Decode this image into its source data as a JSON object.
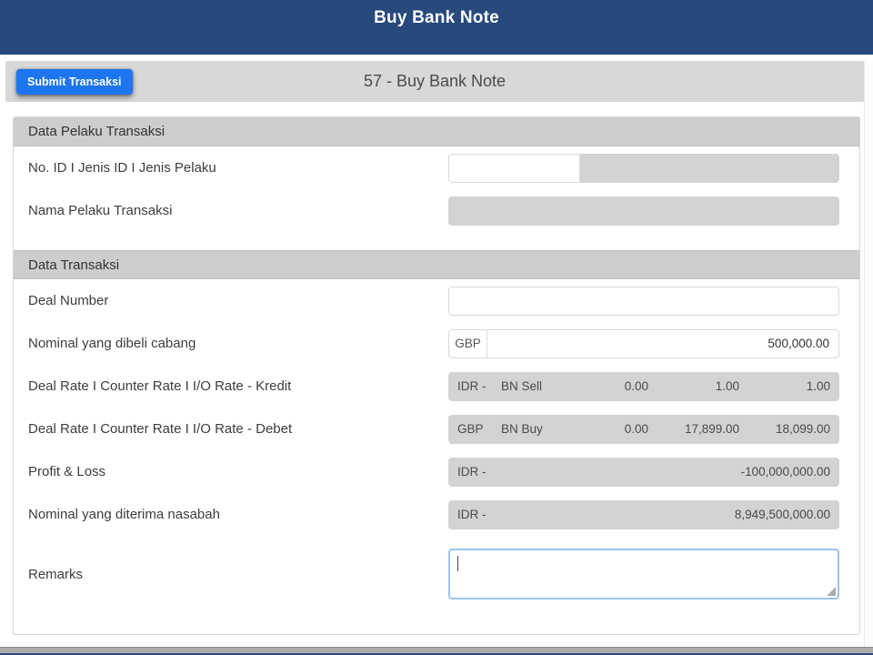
{
  "colors": {
    "header-bg": "#27497C",
    "title-color": "#FFFFFF",
    "toolbar-bg": "#D8D8D8",
    "button-bg": "#1D76F0",
    "section-header-bg": "#CDCDCD",
    "disabled-field-bg": "#D3D3D3",
    "focus-border": "#9CC3EC"
  },
  "header": {
    "title": "Buy Bank Note"
  },
  "toolbar": {
    "submit_label": "Submit Transaksi",
    "form_title": "57 - Buy Bank Note"
  },
  "data_pelaku": {
    "section_title": "Data Pelaku Transaksi",
    "no_id": {
      "label": "No. ID I Jenis ID I Jenis Pelaku",
      "value": "",
      "detail": ""
    },
    "nama": {
      "label": "Nama Pelaku Transaksi",
      "value": ""
    }
  },
  "data_transaksi": {
    "section_title": "Data Transaksi",
    "deal_number": {
      "label": "Deal Number",
      "value": ""
    },
    "nominal_dibeli": {
      "label": "Nominal yang dibeli cabang",
      "currency": "GBP",
      "value": "500,000.00"
    },
    "rate_kredit": {
      "label": "Deal Rate I Counter Rate I I/O Rate - Kredit",
      "currency": "IDR -",
      "rate_type": "BN Sell",
      "deal_rate": "0.00",
      "counter_rate": "1.00",
      "io_rate": "1.00"
    },
    "rate_debet": {
      "label": "Deal Rate I Counter Rate I I/O Rate - Debet",
      "currency": "GBP",
      "rate_type": "BN Buy",
      "deal_rate": "0.00",
      "counter_rate": "17,899.00",
      "io_rate": "18,099.00"
    },
    "profit_loss": {
      "label": "Profit & Loss",
      "currency": "IDR -",
      "value": "-100,000,000.00"
    },
    "nominal_diterima": {
      "label": "Nominal yang diterima nasabah",
      "currency": "IDR -",
      "value": "8,949,500,000.00"
    },
    "remarks": {
      "label": "Remarks",
      "value": ""
    }
  }
}
